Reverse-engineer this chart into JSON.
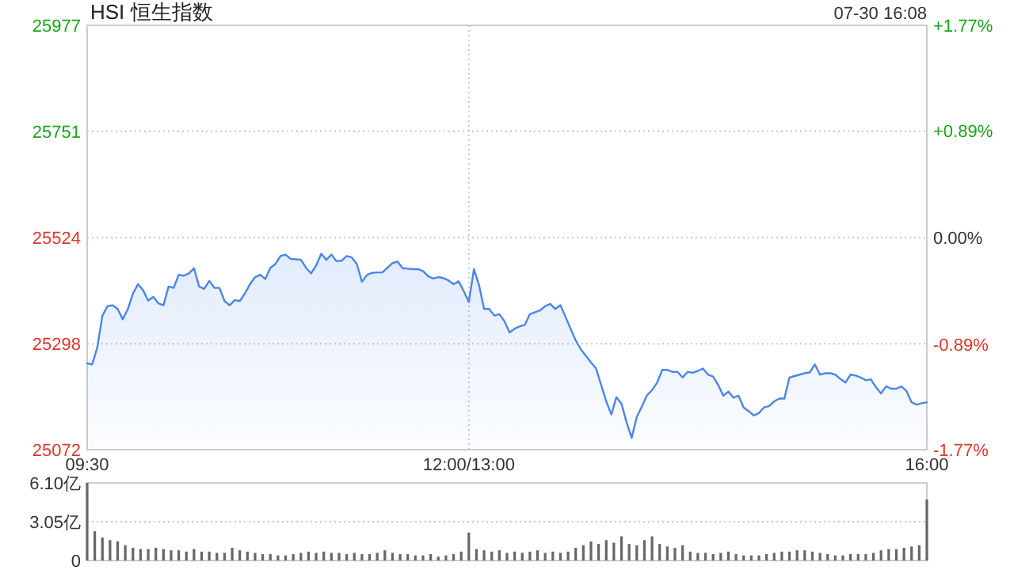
{
  "chart_data": [
    {
      "type": "area",
      "title": "HSI 恒生指数",
      "subtitle": "07-30 16:08",
      "categories": [
        "09:30",
        null,
        null,
        null,
        null,
        null,
        null,
        null,
        null,
        null,
        null,
        null,
        null,
        null,
        null,
        null,
        null,
        null,
        null,
        null,
        null,
        null,
        null,
        null,
        null,
        null,
        null,
        null,
        null,
        null,
        null,
        null,
        null,
        null,
        null,
        null,
        null,
        null,
        null,
        null,
        null,
        null,
        null,
        null,
        null,
        null,
        null,
        null,
        null,
        null,
        null,
        null,
        null,
        null,
        null,
        null,
        null,
        null,
        null,
        null,
        null,
        null,
        null,
        null,
        null,
        null,
        null,
        null,
        null,
        null,
        null,
        null,
        null,
        null,
        null,
        "12:00/13:00",
        null,
        null,
        null,
        null,
        null,
        null,
        null,
        null,
        null,
        null,
        null,
        null,
        null,
        null,
        null,
        null,
        null,
        null,
        null,
        null,
        null,
        null,
        null,
        null,
        null,
        null,
        null,
        null,
        null,
        null,
        null,
        null,
        null,
        null,
        null,
        null,
        null,
        null,
        null,
        null,
        null,
        null,
        null,
        null,
        null,
        null,
        null,
        null,
        null,
        null,
        null,
        null,
        null,
        null,
        null,
        null,
        null,
        null,
        null,
        null,
        null,
        null,
        null,
        null,
        null,
        null,
        null,
        null,
        null,
        null,
        null,
        null,
        null,
        null,
        null,
        null,
        null,
        null,
        null,
        null,
        null,
        null,
        null,
        null,
        null,
        null,
        null,
        null,
        null,
        "16:00"
      ],
      "series": [
        {
          "color": "#4a86e8",
          "values": [
            25256,
            25254,
            25290,
            25358,
            25378,
            25380,
            25372,
            25350,
            25372,
            25405,
            25425,
            25412,
            25390,
            25398,
            25384,
            25380,
            25420,
            25417,
            25445,
            25443,
            25448,
            25459,
            25420,
            25415,
            25432,
            25417,
            25417,
            25389,
            25380,
            25391,
            25389,
            25405,
            25425,
            25440,
            25445,
            25436,
            25460,
            25468,
            25485,
            25488,
            25479,
            25478,
            25477,
            25460,
            25448,
            25465,
            25490,
            25477,
            25488,
            25474,
            25475,
            25485,
            25482,
            25468,
            25430,
            25445,
            25449,
            25450,
            25450,
            25460,
            25470,
            25473,
            25459,
            25458,
            25457,
            25457,
            25453,
            25442,
            25437,
            25440,
            25438,
            25433,
            25425,
            25431,
            25410,
            25387,
            25457,
            25423,
            25372,
            25372,
            25358,
            25361,
            25346,
            25322,
            25330,
            25335,
            25338,
            25361,
            25365,
            25369,
            25378,
            25383,
            25372,
            25380,
            25355,
            25330,
            25305,
            25286,
            25272,
            25258,
            25245,
            25210,
            25175,
            25147,
            25184,
            25170,
            25130,
            25097,
            25142,
            25164,
            25188,
            25199,
            25215,
            25242,
            25242,
            25238,
            25238,
            25226,
            25238,
            25236,
            25240,
            25245,
            25232,
            25228,
            25210,
            25187,
            25196,
            25183,
            25187,
            25162,
            25154,
            25145,
            25150,
            25162,
            25165,
            25175,
            25181,
            25181,
            25226,
            25229,
            25232,
            25235,
            25237,
            25254,
            25232,
            25235,
            25235,
            25232,
            25223,
            25215,
            25232,
            25230,
            25226,
            25220,
            25222,
            25205,
            25192,
            25207,
            25202,
            25202,
            25207,
            25197,
            25173,
            25168,
            25171,
            25173
          ]
        }
      ],
      "ylim": [
        25072,
        25977
      ],
      "yticks": [
        25072,
        25298,
        25524,
        25751,
        25977
      ],
      "y2lim": [
        -1.77,
        1.77
      ],
      "y2ticks": [
        {
          "value": -1.77,
          "label": "-1.77%"
        },
        {
          "value": -0.89,
          "label": "-0.89%"
        },
        {
          "value": 0,
          "label": "0.00%"
        },
        {
          "value": 0.89,
          "label": "+0.89%"
        },
        {
          "value": 1.77,
          "label": "+1.77%"
        }
      ],
      "grid": true
    },
    {
      "type": "bar",
      "categories": [
        null,
        null,
        null,
        null,
        null,
        null,
        null,
        null,
        null,
        null,
        null,
        null,
        null,
        null,
        null,
        null,
        null,
        null,
        null,
        null,
        null,
        null,
        null,
        null,
        null,
        null,
        null,
        null,
        null,
        null,
        null,
        null,
        null,
        null,
        null,
        null,
        null,
        null,
        null,
        null,
        null,
        null,
        null,
        null,
        null,
        null,
        null,
        null,
        null,
        null,
        null,
        null,
        null,
        null,
        null,
        null,
        null,
        null,
        null,
        null,
        null,
        null,
        null,
        null,
        null,
        null,
        null,
        null,
        null,
        null,
        null,
        null,
        null,
        null,
        null,
        null,
        null,
        null,
        null,
        null,
        null,
        null,
        null,
        null,
        null,
        null,
        null,
        null,
        null,
        null,
        null,
        null,
        null,
        null,
        null,
        null,
        null,
        null,
        null,
        null,
        null,
        null,
        null,
        null,
        null,
        null,
        null,
        null,
        null,
        null,
        null
      ],
      "values": [
        6.1,
        2.3,
        1.8,
        1.6,
        1.5,
        1.2,
        1.0,
        0.9,
        0.9,
        1.0,
        0.9,
        0.8,
        0.8,
        0.7,
        0.9,
        0.7,
        0.7,
        0.6,
        0.6,
        1.0,
        0.8,
        0.7,
        0.6,
        0.5,
        0.5,
        0.4,
        0.4,
        0.5,
        0.6,
        0.7,
        0.6,
        0.7,
        0.6,
        0.6,
        0.5,
        0.6,
        0.5,
        0.5,
        0.6,
        0.8,
        0.6,
        0.5,
        0.5,
        0.4,
        0.4,
        0.5,
        0.3,
        0.4,
        0.5,
        0.7,
        2.2,
        0.9,
        0.8,
        0.7,
        0.8,
        0.6,
        0.7,
        0.6,
        0.7,
        0.8,
        0.6,
        0.7,
        0.6,
        0.7,
        1.0,
        1.2,
        1.5,
        1.3,
        1.6,
        1.4,
        1.9,
        1.3,
        1.2,
        1.6,
        1.9,
        1.3,
        1.1,
        1.0,
        1.2,
        0.7,
        0.6,
        0.6,
        0.5,
        0.6,
        0.7,
        0.5,
        0.4,
        0.4,
        0.4,
        0.5,
        0.6,
        0.7,
        0.7,
        0.8,
        0.8,
        0.7,
        0.6,
        0.5,
        0.4,
        0.4,
        0.5,
        0.5,
        0.5,
        0.6,
        0.8,
        0.9,
        0.9,
        1.0,
        1.1,
        1.2,
        4.8
      ],
      "color": "#666666",
      "ylim": [
        0,
        6.1
      ],
      "yticks": [
        0,
        {
          "value": 3.05,
          "label": "3.05亿"
        },
        {
          "value": 6.1,
          "label": "6.10亿"
        }
      ],
      "grid": "y"
    }
  ]
}
